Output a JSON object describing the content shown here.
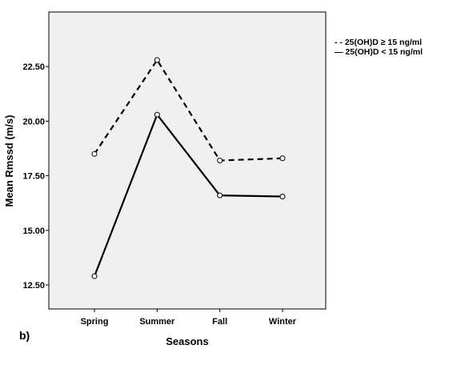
{
  "panel_label": "b)",
  "chart_data": {
    "type": "line",
    "xlabel": "Seasons",
    "ylabel": "Mean Rmssd (m/s)",
    "categories": [
      "Spring",
      "Summer",
      "Fall",
      "Winter"
    ],
    "yticks": [
      "12.50",
      "15.00",
      "17.50",
      "20.00",
      "22.50"
    ],
    "ylim": [
      11.4,
      25.0
    ],
    "grid": false,
    "legend_position": "top-right, outside plot",
    "plot_background": "#f0f0f0",
    "series": [
      {
        "name": "25(OH)D ≥ 15 ng/ml",
        "legend_label": "- - 25(OH)D ≥ 15 ng/ml",
        "style": "dashed",
        "values": [
          18.5,
          22.8,
          18.2,
          18.3
        ]
      },
      {
        "name": "25(OH)D < 15 ng/ml",
        "legend_label": "— 25(OH)D < 15 ng/ml",
        "style": "solid",
        "values": [
          12.9,
          20.3,
          16.6,
          16.55
        ]
      }
    ]
  }
}
